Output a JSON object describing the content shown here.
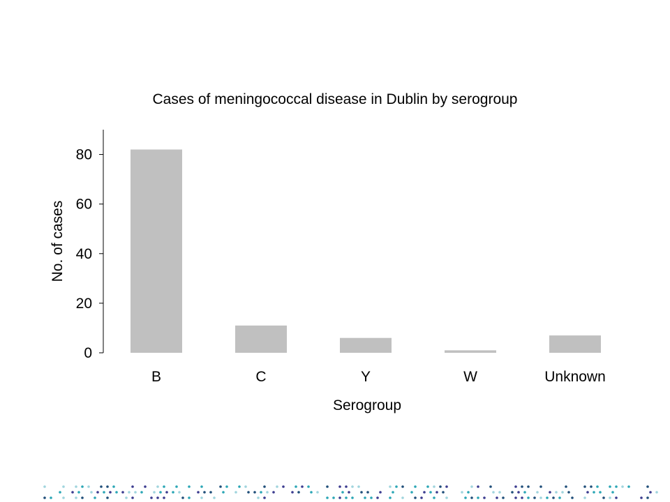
{
  "chart_data": {
    "type": "bar",
    "title": "Cases of meningococcal disease in Dublin by serogroup",
    "xlabel": "Serogroup",
    "ylabel": "No. of cases",
    "categories": [
      "B",
      "C",
      "Y",
      "W",
      "Unknown"
    ],
    "values": [
      82,
      11,
      6,
      1,
      7
    ],
    "ylim": [
      0,
      90
    ],
    "yticks": [
      0,
      20,
      40,
      60,
      80
    ],
    "grid": false,
    "bar_color": "#c0c0c0"
  },
  "footer_dots_colors": [
    "#1f4e79",
    "#2aa6b5",
    "#9fd4dd",
    "#3b3b8f"
  ]
}
